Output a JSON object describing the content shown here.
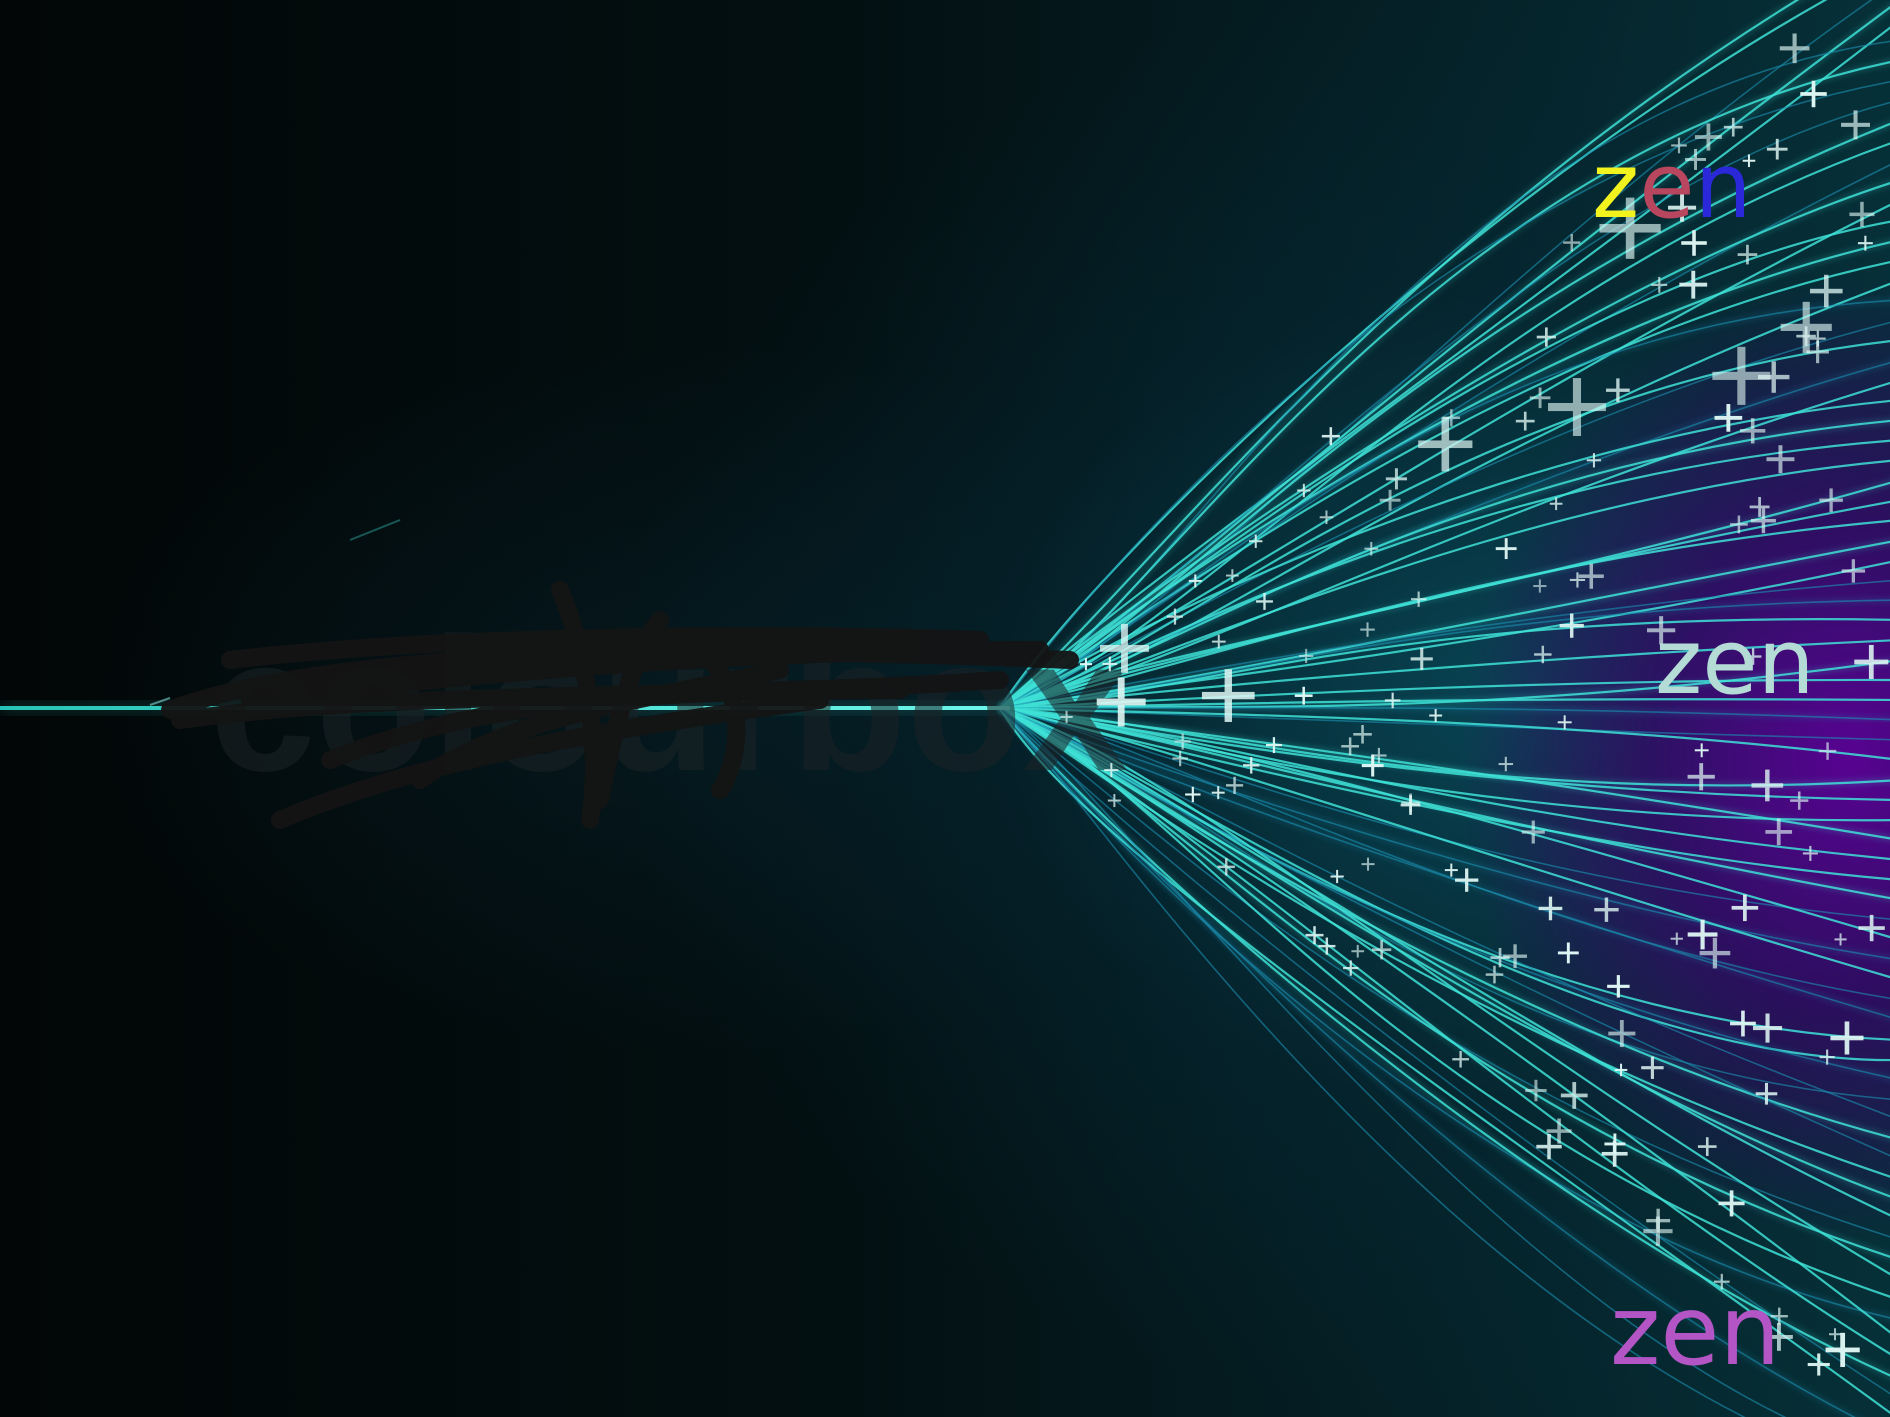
{
  "photo": {
    "subject": "fiber-optic light strands"
  },
  "overlays": {
    "zen_top": {
      "letters": [
        {
          "char": "z",
          "color": "#f2f21e"
        },
        {
          "char": "e",
          "color": "#b8465e"
        },
        {
          "char": "n",
          "color": "#2a28d8"
        }
      ]
    },
    "zen_middle": {
      "text": "zen",
      "color": "#b5dbd6"
    },
    "zen_bottom": {
      "text": "zen",
      "color": "#b455c6"
    }
  },
  "watermark": {
    "style": "scribbled-out"
  },
  "colors": {
    "fiber_cyan": "#3ee0d6",
    "fiber_deep": "#1a8fb0",
    "glow_purple": "#5c0096",
    "background": "#020606",
    "scribble": "#141414"
  }
}
